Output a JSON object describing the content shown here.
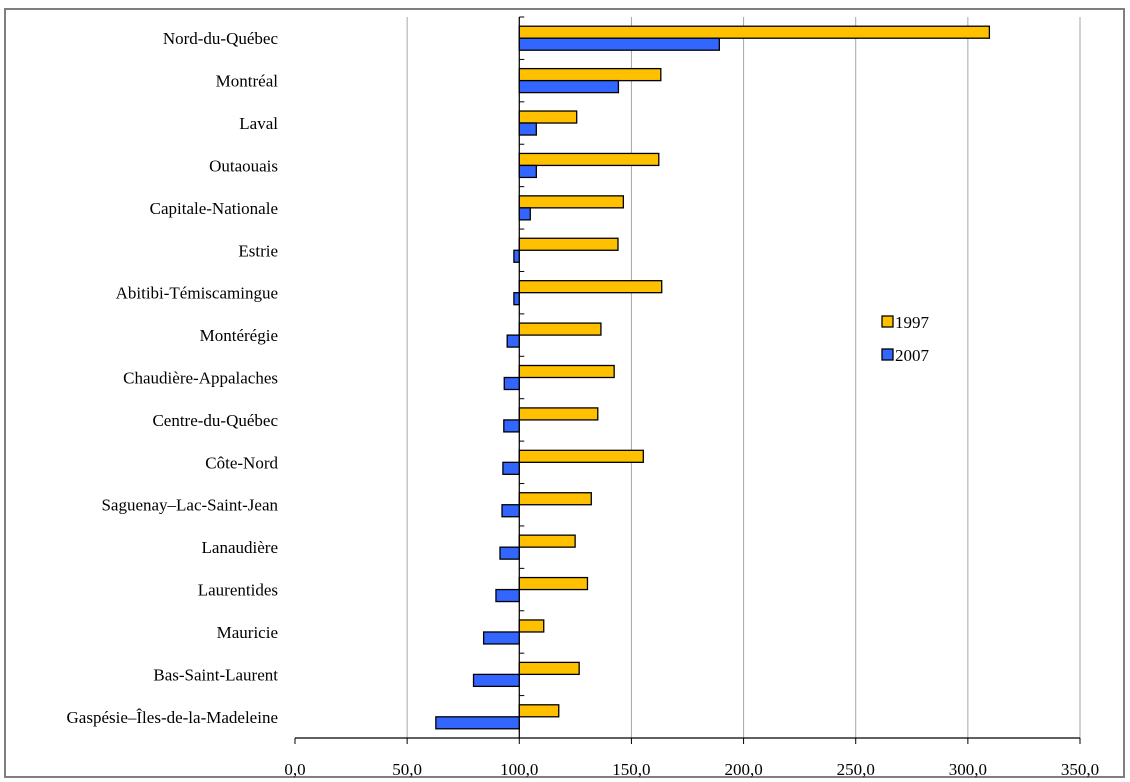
{
  "chart_data": {
    "type": "bar",
    "orientation": "horizontal",
    "baseline": 100,
    "categories": [
      "Nord-du-Québec",
      "Montréal",
      "Laval",
      "Outaouais",
      "Capitale-Nationale",
      "Estrie",
      "Abitibi-Témiscamingue",
      "Montérégie",
      "Chaudière-Appalaches",
      "Centre-du-Québec",
      "Côte-Nord",
      "Saguenay–Lac-Saint-Jean",
      "Lanaudière",
      "Laurentides",
      "Mauricie",
      "Bas-Saint-Laurent",
      "Gaspésie–Îles-de-la-Madeleine"
    ],
    "series": [
      {
        "name": "1997",
        "color": "#ffc000",
        "values": [
          309.6,
          163.1,
          125.6,
          162.2,
          146.4,
          144.0,
          163.5,
          136.4,
          142.3,
          135.0,
          155.3,
          132.1,
          124.9,
          130.4,
          110.9,
          126.7,
          117.6
        ]
      },
      {
        "name": "2007",
        "color": "#3366ff",
        "values": [
          189.2,
          144.2,
          107.6,
          107.6,
          104.9,
          97.6,
          97.6,
          94.6,
          93.3,
          93.1,
          92.7,
          92.3,
          91.4,
          89.6,
          84.1,
          79.6,
          62.8
        ]
      }
    ],
    "xlim": [
      0,
      350
    ],
    "xticks": [
      "0,0",
      "50,0",
      "100,0",
      "150,0",
      "200,0",
      "250,0",
      "300,0",
      "350,0"
    ],
    "xtick_values": [
      0,
      50,
      100,
      150,
      200,
      250,
      300,
      350
    ],
    "grid": "vertical",
    "legend_position": "right",
    "xlabel": "",
    "ylabel": "",
    "title": ""
  }
}
